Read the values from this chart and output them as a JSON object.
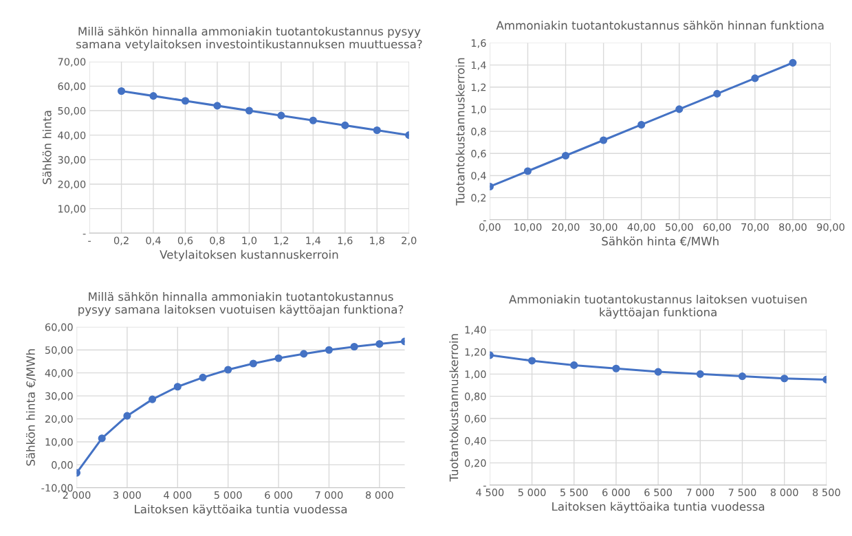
{
  "chart_data": [
    {
      "type": "line",
      "title": "Millä sähkön hinnalla ammoniakin tuotantokustannus pysyy\nsamana vetylaitoksen investointikustannuksen muuttuessa?",
      "xlabel": "Vetylaitoksen kustannuskerroin",
      "ylabel": "Sähkön hinta",
      "x": [
        0.2,
        0.4,
        0.6,
        0.8,
        1.0,
        1.2,
        1.4,
        1.6,
        1.8,
        2.0
      ],
      "series": [
        {
          "color": "#4472c4",
          "values": [
            58,
            56,
            54,
            52,
            50,
            48,
            46,
            44,
            42,
            40
          ]
        }
      ],
      "xlim": [
        0,
        2.0
      ],
      "xticks": [
        {
          "value": 0,
          "label": "-"
        },
        {
          "value": 0.2,
          "label": "0,2"
        },
        {
          "value": 0.4,
          "label": "0,4"
        },
        {
          "value": 0.6,
          "label": "0,6"
        },
        {
          "value": 0.8,
          "label": "0,8"
        },
        {
          "value": 1.0,
          "label": "1,0"
        },
        {
          "value": 1.2,
          "label": "1,2"
        },
        {
          "value": 1.4,
          "label": "1,4"
        },
        {
          "value": 1.6,
          "label": "1,6"
        },
        {
          "value": 1.8,
          "label": "1,8"
        },
        {
          "value": 2.0,
          "label": "2,0"
        }
      ],
      "ylim": [
        0,
        70
      ],
      "yticks": [
        {
          "value": 0,
          "label": "-"
        },
        {
          "value": 10,
          "label": "10,00"
        },
        {
          "value": 20,
          "label": "20,00"
        },
        {
          "value": 30,
          "label": "30,00"
        },
        {
          "value": 40,
          "label": "40,00"
        },
        {
          "value": 50,
          "label": "50,00"
        },
        {
          "value": 60,
          "label": "60,00"
        },
        {
          "value": 70,
          "label": "70,00"
        }
      ],
      "grid": true,
      "marker": "circle",
      "line_style": "solid",
      "legend": false
    },
    {
      "type": "line",
      "title": "Ammoniakin tuotantokustannus sähkön hinnan funktiona",
      "xlabel": "Sähkön hinta €/MWh",
      "ylabel": "Tuotantokustannuskerroin",
      "x": [
        0,
        10,
        20,
        30,
        40,
        50,
        60,
        70,
        80
      ],
      "series": [
        {
          "color": "#4472c4",
          "values": [
            0.3,
            0.44,
            0.58,
            0.72,
            0.86,
            1.0,
            1.14,
            1.28,
            1.42
          ]
        }
      ],
      "xlim": [
        0,
        90
      ],
      "xticks": [
        {
          "value": 0,
          "label": "0,00"
        },
        {
          "value": 10,
          "label": "10,00"
        },
        {
          "value": 20,
          "label": "20,00"
        },
        {
          "value": 30,
          "label": "30,00"
        },
        {
          "value": 40,
          "label": "40,00"
        },
        {
          "value": 50,
          "label": "50,00"
        },
        {
          "value": 60,
          "label": "60,00"
        },
        {
          "value": 70,
          "label": "70,00"
        },
        {
          "value": 80,
          "label": "80,00"
        },
        {
          "value": 90,
          "label": "90,00"
        }
      ],
      "ylim": [
        0,
        1.6
      ],
      "yticks": [
        {
          "value": 0,
          "label": "-"
        },
        {
          "value": 0.2,
          "label": "0,2"
        },
        {
          "value": 0.4,
          "label": "0,4"
        },
        {
          "value": 0.6,
          "label": "0,6"
        },
        {
          "value": 0.8,
          "label": "0,8"
        },
        {
          "value": 1.0,
          "label": "1,0"
        },
        {
          "value": 1.2,
          "label": "1,2"
        },
        {
          "value": 1.4,
          "label": "1,4"
        },
        {
          "value": 1.6,
          "label": "1,6"
        }
      ],
      "grid": true,
      "marker": "circle",
      "line_style": "solid",
      "legend": false
    },
    {
      "type": "line",
      "title": "Millä sähkön hinnalla ammoniakin tuotantokustannus\npysyy samana laitoksen vuotuisen käyttöajan funktiona?",
      "xlabel": "Laitoksen käyttöaika tuntia vuodessa",
      "ylabel": "Sähkön hinta €/MWh",
      "x": [
        2000,
        2500,
        3000,
        3500,
        4000,
        4500,
        5000,
        5500,
        6000,
        6500,
        7000,
        7500,
        8000,
        8500
      ],
      "series": [
        {
          "color": "#4472c4",
          "values": [
            -3.5,
            11.5,
            21.3,
            28.5,
            34.0,
            38.0,
            41.4,
            44.1,
            46.4,
            48.3,
            50.0,
            51.4,
            52.6,
            53.7
          ]
        }
      ],
      "xlim": [
        2000,
        8500
      ],
      "xticks": [
        {
          "value": 2000,
          "label": "2 000"
        },
        {
          "value": 3000,
          "label": "3 000"
        },
        {
          "value": 4000,
          "label": "4 000"
        },
        {
          "value": 5000,
          "label": "5 000"
        },
        {
          "value": 6000,
          "label": "6 000"
        },
        {
          "value": 7000,
          "label": "7 000"
        },
        {
          "value": 8000,
          "label": "8 000"
        }
      ],
      "ylim": [
        -10,
        60
      ],
      "yticks": [
        {
          "value": -10,
          "label": "-10,00"
        },
        {
          "value": 0,
          "label": "0,00"
        },
        {
          "value": 10,
          "label": "10,00"
        },
        {
          "value": 20,
          "label": "20,00"
        },
        {
          "value": 30,
          "label": "30,00"
        },
        {
          "value": 40,
          "label": "40,00"
        },
        {
          "value": 50,
          "label": "50,00"
        },
        {
          "value": 60,
          "label": "60,00"
        }
      ],
      "grid": true,
      "marker": "circle",
      "line_style": "solid",
      "legend": false
    },
    {
      "type": "line",
      "title": "Ammoniakin tuotantokustannus laitoksen vuotuisen\nkäyttöajan funktiona",
      "xlabel": "Laitoksen käyttöaika tuntia vuodessa",
      "ylabel": "Tuotantokustannuskerroin",
      "x": [
        4500,
        5000,
        5500,
        6000,
        6500,
        7000,
        7500,
        8000,
        8500
      ],
      "series": [
        {
          "color": "#4472c4",
          "values": [
            1.17,
            1.12,
            1.08,
            1.05,
            1.02,
            1.0,
            0.98,
            0.96,
            0.95
          ]
        }
      ],
      "xlim": [
        4500,
        8500
      ],
      "xticks": [
        {
          "value": 4500,
          "label": "4 500"
        },
        {
          "value": 5000,
          "label": "5 000"
        },
        {
          "value": 5500,
          "label": "5 500"
        },
        {
          "value": 6000,
          "label": "6 000"
        },
        {
          "value": 6500,
          "label": "6 500"
        },
        {
          "value": 7000,
          "label": "7 000"
        },
        {
          "value": 7500,
          "label": "7 500"
        },
        {
          "value": 8000,
          "label": "8 000"
        },
        {
          "value": 8500,
          "label": "8 500"
        }
      ],
      "ylim": [
        0,
        1.4
      ],
      "yticks": [
        {
          "value": 0,
          "label": "-"
        },
        {
          "value": 0.2,
          "label": "0,20"
        },
        {
          "value": 0.4,
          "label": "0,40"
        },
        {
          "value": 0.6,
          "label": "0,60"
        },
        {
          "value": 0.8,
          "label": "0,80"
        },
        {
          "value": 1.0,
          "label": "1,00"
        },
        {
          "value": 1.2,
          "label": "1,20"
        },
        {
          "value": 1.4,
          "label": "1,40"
        }
      ],
      "grid": true,
      "marker": "circle",
      "line_style": "solid",
      "legend": false
    }
  ]
}
